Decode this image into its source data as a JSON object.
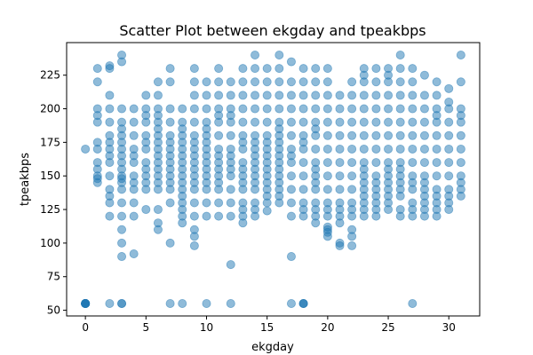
{
  "chart_data": {
    "type": "scatter",
    "title": "Scatter Plot between ekgday and tpeakbps",
    "xlabel": "ekgday",
    "ylabel": "tpeakbps",
    "xlim": [
      -1.55,
      32.55
    ],
    "ylim": [
      45.75,
      249.25
    ],
    "xticks": [
      0,
      5,
      10,
      15,
      20,
      25,
      30
    ],
    "yticks": [
      50,
      75,
      100,
      125,
      150,
      175,
      200,
      225
    ],
    "grid": false,
    "legend": "none",
    "marker_color": "#1f77b4",
    "marker_alpha": 0.5,
    "x_values": [
      0,
      0,
      0,
      0,
      0,
      0,
      0,
      0,
      0,
      0,
      1,
      1,
      1,
      1,
      1,
      1,
      1,
      1,
      1,
      1,
      1,
      1,
      2,
      2,
      2,
      2,
      2,
      2,
      2,
      2,
      2,
      2,
      2,
      2,
      2,
      2,
      2,
      2,
      3,
      3,
      3,
      3,
      3,
      3,
      3,
      3,
      3,
      3,
      3,
      3,
      3,
      3,
      3,
      3,
      3,
      3,
      3,
      3,
      3,
      3,
      4,
      4,
      4,
      4,
      4,
      4,
      4,
      4,
      4,
      4,
      4,
      4,
      5,
      5,
      5,
      5,
      5,
      5,
      5,
      5,
      5,
      5,
      5,
      5,
      5,
      6,
      6,
      6,
      6,
      6,
      6,
      6,
      6,
      6,
      6,
      6,
      6,
      6,
      6,
      6,
      6,
      6,
      6,
      7,
      7,
      7,
      7,
      7,
      7,
      7,
      7,
      7,
      7,
      7,
      7,
      7,
      7,
      7,
      7,
      8,
      8,
      8,
      8,
      8,
      8,
      8,
      8,
      8,
      8,
      8,
      8,
      8,
      8,
      8,
      8,
      8,
      8,
      9,
      9,
      9,
      9,
      9,
      9,
      9,
      9,
      9,
      9,
      9,
      9,
      9,
      9,
      9,
      9,
      9,
      9,
      9,
      10,
      10,
      10,
      10,
      10,
      10,
      10,
      10,
      10,
      10,
      10,
      10,
      10,
      10,
      10,
      10,
      10,
      11,
      11,
      11,
      11,
      11,
      11,
      11,
      11,
      11,
      11,
      11,
      11,
      11,
      11,
      11,
      11,
      12,
      12,
      12,
      12,
      12,
      12,
      12,
      12,
      12,
      12,
      12,
      12,
      12,
      12,
      12,
      12,
      13,
      13,
      13,
      13,
      13,
      13,
      13,
      13,
      13,
      13,
      13,
      13,
      13,
      13,
      13,
      13,
      13,
      14,
      14,
      14,
      14,
      14,
      14,
      14,
      14,
      14,
      14,
      14,
      14,
      14,
      14,
      14,
      14,
      14,
      14,
      15,
      15,
      15,
      15,
      15,
      15,
      15,
      15,
      15,
      15,
      15,
      15,
      15,
      15,
      15,
      15,
      15,
      16,
      16,
      16,
      16,
      16,
      16,
      16,
      16,
      16,
      16,
      16,
      16,
      16,
      16,
      16,
      16,
      16,
      16,
      17,
      17,
      17,
      17,
      17,
      17,
      17,
      17,
      17,
      17,
      17,
      17,
      17,
      17,
      17,
      18,
      18,
      18,
      18,
      18,
      18,
      18,
      18,
      18,
      18,
      18,
      18,
      18,
      18,
      18,
      18,
      18,
      19,
      19,
      19,
      19,
      19,
      19,
      19,
      19,
      19,
      19,
      19,
      19,
      19,
      19,
      19,
      19,
      19,
      20,
      20,
      20,
      20,
      20,
      20,
      20,
      20,
      20,
      20,
      20,
      20,
      20,
      20,
      20,
      20,
      20,
      21,
      21,
      21,
      21,
      21,
      21,
      21,
      21,
      21,
      21,
      21,
      21,
      21,
      21,
      22,
      22,
      22,
      22,
      22,
      22,
      22,
      22,
      22,
      22,
      22,
      22,
      22,
      22,
      22,
      23,
      23,
      23,
      23,
      23,
      23,
      23,
      23,
      23,
      23,
      23,
      23,
      23,
      23,
      23,
      23,
      23,
      24,
      24,
      24,
      24,
      24,
      24,
      24,
      24,
      24,
      24,
      24,
      24,
      24,
      24,
      24,
      25,
      25,
      25,
      25,
      25,
      25,
      25,
      25,
      25,
      25,
      25,
      25,
      25,
      25,
      25,
      25,
      26,
      26,
      26,
      26,
      26,
      26,
      26,
      26,
      26,
      26,
      26,
      26,
      26,
      26,
      26,
      26,
      27,
      27,
      27,
      27,
      27,
      27,
      27,
      27,
      27,
      27,
      27,
      27,
      27,
      27,
      27,
      28,
      28,
      28,
      28,
      28,
      28,
      28,
      28,
      28,
      28,
      28,
      28,
      28,
      28,
      29,
      29,
      29,
      29,
      29,
      29,
      29,
      29,
      29,
      29,
      29,
      29,
      29,
      29,
      30,
      30,
      30,
      30,
      30,
      30,
      30,
      30,
      30,
      30,
      30,
      30,
      31,
      31,
      31,
      31,
      31,
      31,
      31,
      31,
      31,
      31,
      31,
      31
    ],
    "y_values": [
      55,
      55,
      55,
      55,
      55,
      55,
      55,
      55,
      55,
      170,
      230,
      220,
      200,
      195,
      190,
      175,
      170,
      160,
      155,
      150,
      148,
      145,
      232,
      230,
      210,
      200,
      190,
      180,
      175,
      170,
      165,
      160,
      150,
      140,
      135,
      130,
      120,
      55,
      240,
      235,
      200,
      190,
      185,
      180,
      175,
      170,
      165,
      160,
      155,
      150,
      148,
      145,
      140,
      130,
      120,
      110,
      100,
      90,
      55,
      55,
      200,
      190,
      180,
      170,
      165,
      160,
      150,
      145,
      140,
      130,
      120,
      92,
      210,
      200,
      195,
      190,
      180,
      175,
      170,
      160,
      155,
      150,
      145,
      140,
      125,
      220,
      210,
      200,
      195,
      190,
      185,
      180,
      175,
      170,
      165,
      160,
      155,
      150,
      145,
      140,
      125,
      115,
      110,
      230,
      220,
      200,
      190,
      180,
      175,
      170,
      165,
      160,
      155,
      150,
      145,
      140,
      130,
      100,
      55,
      200,
      190,
      185,
      180,
      175,
      170,
      165,
      160,
      155,
      150,
      145,
      140,
      135,
      130,
      125,
      120,
      115,
      55,
      230,
      220,
      210,
      200,
      190,
      180,
      175,
      170,
      165,
      160,
      155,
      150,
      145,
      140,
      130,
      120,
      110,
      105,
      98,
      220,
      210,
      200,
      190,
      185,
      180,
      175,
      170,
      165,
      160,
      155,
      150,
      145,
      140,
      130,
      120,
      55,
      230,
      220,
      210,
      200,
      195,
      190,
      180,
      170,
      165,
      160,
      155,
      150,
      145,
      140,
      130,
      120,
      220,
      210,
      200,
      195,
      190,
      180,
      170,
      165,
      160,
      155,
      150,
      140,
      130,
      120,
      84,
      55,
      230,
      220,
      210,
      200,
      190,
      180,
      175,
      170,
      160,
      155,
      150,
      145,
      140,
      130,
      125,
      120,
      115,
      240,
      230,
      220,
      210,
      200,
      190,
      180,
      175,
      170,
      165,
      160,
      155,
      150,
      145,
      140,
      130,
      125,
      120,
      230,
      220,
      210,
      200,
      190,
      180,
      175,
      170,
      165,
      160,
      155,
      150,
      145,
      140,
      135,
      130,
      124,
      240,
      230,
      220,
      210,
      200,
      190,
      185,
      180,
      175,
      170,
      165,
      160,
      155,
      150,
      145,
      140,
      135,
      130,
      235,
      220,
      210,
      200,
      190,
      180,
      170,
      165,
      160,
      150,
      140,
      130,
      120,
      90,
      55,
      230,
      220,
      210,
      200,
      190,
      180,
      175,
      170,
      160,
      150,
      140,
      130,
      125,
      120,
      55,
      55,
      55,
      230,
      220,
      210,
      200,
      190,
      185,
      180,
      170,
      160,
      155,
      150,
      145,
      140,
      130,
      125,
      120,
      115,
      230,
      220,
      210,
      200,
      190,
      180,
      170,
      160,
      150,
      140,
      130,
      125,
      120,
      112,
      110,
      108,
      105,
      210,
      200,
      190,
      180,
      170,
      160,
      150,
      140,
      130,
      125,
      120,
      115,
      100,
      98,
      220,
      210,
      200,
      190,
      180,
      170,
      160,
      150,
      140,
      130,
      125,
      120,
      110,
      105,
      98,
      230,
      225,
      220,
      210,
      200,
      190,
      180,
      170,
      160,
      155,
      150,
      145,
      140,
      135,
      130,
      125,
      120,
      230,
      220,
      210,
      200,
      190,
      180,
      170,
      160,
      150,
      145,
      140,
      135,
      130,
      125,
      120,
      230,
      225,
      220,
      210,
      200,
      190,
      180,
      170,
      160,
      155,
      150,
      145,
      140,
      135,
      130,
      125,
      240,
      230,
      220,
      210,
      200,
      190,
      180,
      170,
      160,
      155,
      150,
      145,
      140,
      135,
      125,
      120,
      230,
      220,
      210,
      200,
      190,
      180,
      170,
      160,
      150,
      145,
      140,
      130,
      125,
      120,
      55,
      225,
      210,
      200,
      190,
      180,
      170,
      160,
      150,
      145,
      140,
      135,
      130,
      125,
      120,
      220,
      210,
      200,
      195,
      190,
      180,
      170,
      160,
      150,
      140,
      135,
      130,
      125,
      120,
      215,
      205,
      200,
      190,
      180,
      170,
      160,
      150,
      140,
      135,
      130,
      125,
      240,
      220,
      200,
      195,
      190,
      180,
      170,
      160,
      150,
      145,
      140,
      135
    ]
  }
}
